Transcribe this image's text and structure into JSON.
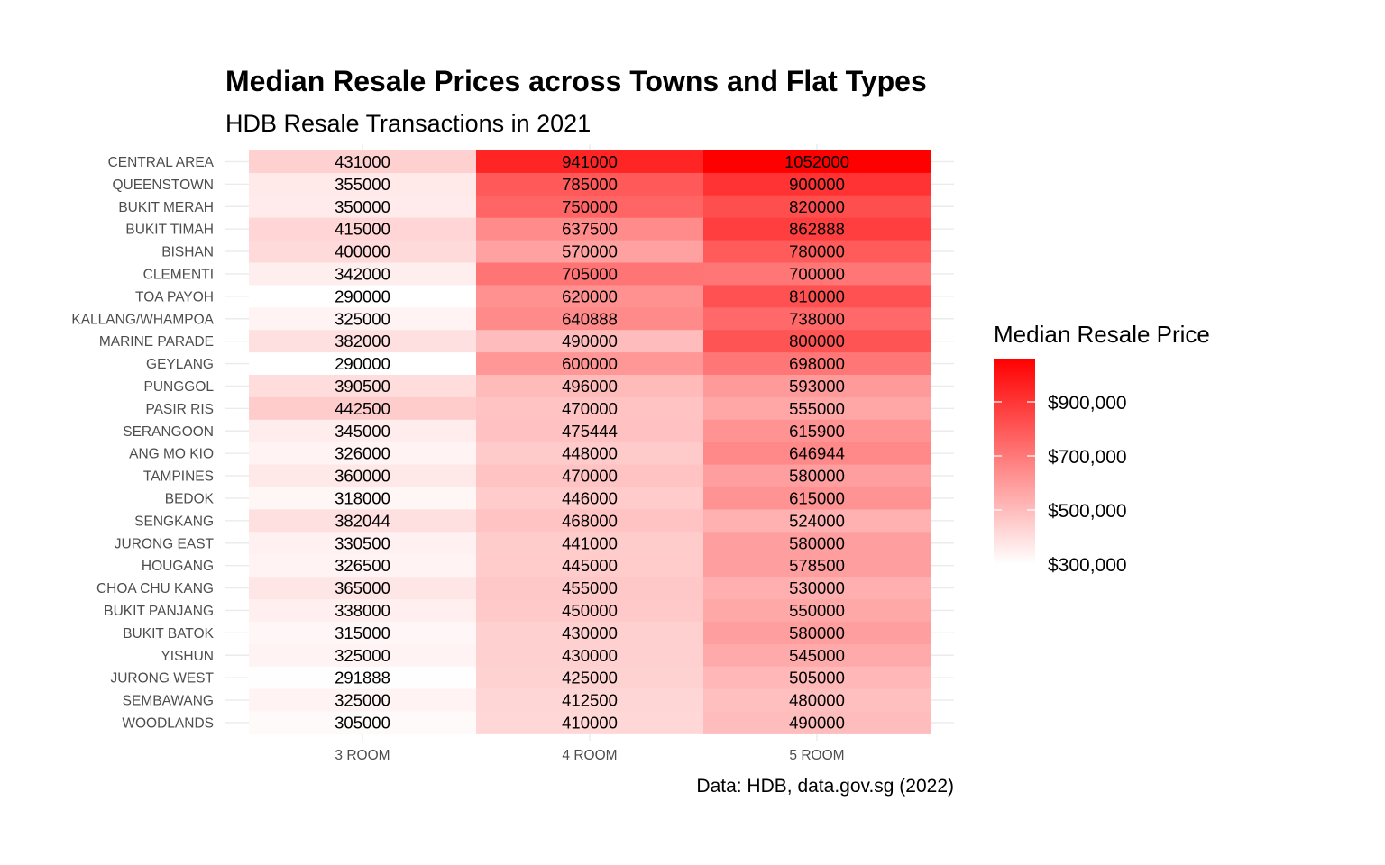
{
  "chart_data": {
    "type": "heatmap",
    "title": "Median Resale Prices across Towns and Flat Types",
    "subtitle": "HDB Resale Transactions in 2021",
    "caption": "Data: HDB, data.gov.sg (2022)",
    "x": [
      "3 ROOM",
      "4 ROOM",
      "5 ROOM"
    ],
    "y": [
      "CENTRAL AREA",
      "QUEENSTOWN",
      "BUKIT MERAH",
      "BUKIT TIMAH",
      "BISHAN",
      "CLEMENTI",
      "TOA PAYOH",
      "KALLANG/WHAMPOA",
      "MARINE PARADE",
      "GEYLANG",
      "PUNGGOL",
      "PASIR RIS",
      "SERANGOON",
      "ANG MO KIO",
      "TAMPINES",
      "BEDOK",
      "SENGKANG",
      "JURONG EAST",
      "HOUGANG",
      "CHOA CHU KANG",
      "BUKIT PANJANG",
      "BUKIT BATOK",
      "YISHUN",
      "JURONG WEST",
      "SEMBAWANG",
      "WOODLANDS"
    ],
    "values": [
      [
        431000,
        941000,
        1052000
      ],
      [
        355000,
        785000,
        900000
      ],
      [
        350000,
        750000,
        820000
      ],
      [
        415000,
        637500,
        862888
      ],
      [
        400000,
        570000,
        780000
      ],
      [
        342000,
        705000,
        700000
      ],
      [
        290000,
        620000,
        810000
      ],
      [
        325000,
        640888,
        738000
      ],
      [
        382000,
        490000,
        800000
      ],
      [
        290000,
        600000,
        698000
      ],
      [
        390500,
        496000,
        593000
      ],
      [
        442500,
        470000,
        555000
      ],
      [
        345000,
        475444,
        615900
      ],
      [
        326000,
        448000,
        646944
      ],
      [
        360000,
        470000,
        580000
      ],
      [
        318000,
        446000,
        615000
      ],
      [
        382044,
        468000,
        524000
      ],
      [
        330500,
        441000,
        580000
      ],
      [
        326500,
        445000,
        578500
      ],
      [
        365000,
        455000,
        530000
      ],
      [
        338000,
        450000,
        550000
      ],
      [
        315000,
        430000,
        580000
      ],
      [
        325000,
        430000,
        545000
      ],
      [
        291888,
        425000,
        505000
      ],
      [
        325000,
        412500,
        480000
      ],
      [
        305000,
        410000,
        490000
      ]
    ],
    "color_scale": {
      "low": "#ffffff",
      "high": "#ff0000",
      "min": 290000,
      "max": 1052000
    },
    "legend": {
      "title": "Median Resale Price",
      "position": "right",
      "ticks": [
        {
          "value": 300000,
          "label": "$300,000"
        },
        {
          "value": 500000,
          "label": "$500,000"
        },
        {
          "value": 700000,
          "label": "$700,000"
        },
        {
          "value": 900000,
          "label": "$900,000"
        }
      ]
    },
    "grid": true
  }
}
